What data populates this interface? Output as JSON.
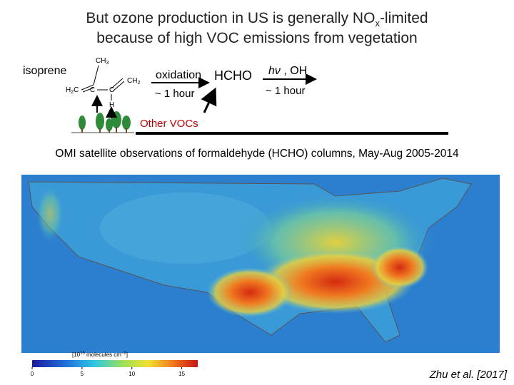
{
  "title": {
    "line1": [
      "But ozone production in US is generally NO",
      "x",
      "-limited"
    ],
    "line2": "because of high VOC emissions from vegetation"
  },
  "diagram": {
    "source": "isoprene",
    "structure": {
      "ch3": "CH",
      "ch3_sub": "3",
      "c_top": "C",
      "ch2_right": "CH",
      "ch2_sub": "2",
      "h2c": "H",
      "h2c_sub": "2",
      "h2c_c": "C",
      "c_bottom": "C",
      "h": "H"
    },
    "step1": {
      "label": "oxidation",
      "time": "~ 1 hour"
    },
    "product": "HCHO",
    "step2": {
      "label_italic": "hν",
      "label": " , OH",
      "time": "~ 1 hour"
    },
    "other": "Other VOCs"
  },
  "figure": {
    "caption": "OMI satellite observations of formaldehyde (HCHO) columns, May-Aug 2005-2014",
    "colorbar": {
      "unit": [
        "[10",
        "15",
        " molecules cm",
        "−2",
        "]"
      ],
      "lim": [
        0,
        16.6
      ],
      "ticks": [
        0,
        5,
        10,
        15
      ]
    },
    "citation": "Zhu et al. [2017]"
  }
}
